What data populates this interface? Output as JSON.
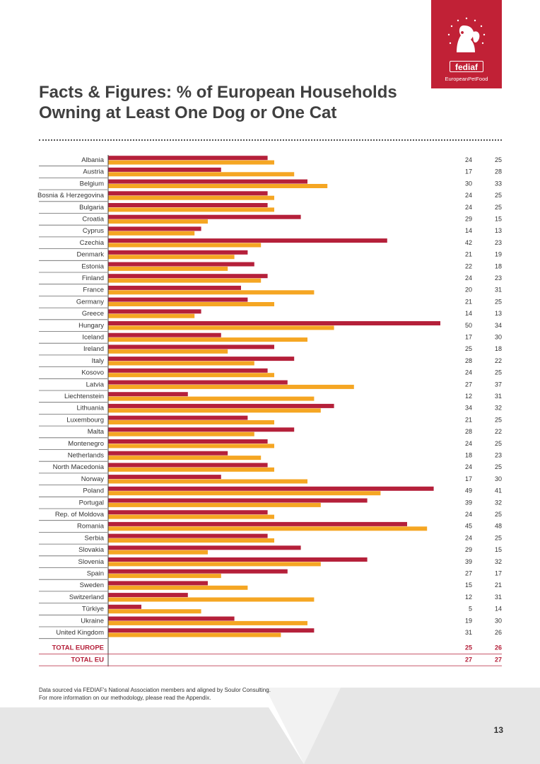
{
  "logo": {
    "name": "fediaf",
    "tagline": "EuropeanPetFood"
  },
  "title": "Facts & Figures: % of European Households Owning at Least One Dog or One Cat",
  "chart_data": {
    "type": "bar",
    "orientation": "horizontal",
    "title": "Facts & Figures: % of European Households Owning at Least One Dog or One Cat",
    "xlim": [
      0,
      55
    ],
    "grid": false,
    "legend": "none",
    "colors": {
      "series1": "#b5203a",
      "series2": "#f5a623",
      "totals_text": "#b5203a",
      "label_text": "#333333"
    },
    "categories": [
      "Albania",
      "Austria",
      "Belgium",
      "Bosnia & Herzegovina",
      "Bulgaria",
      "Croatia",
      "Cyprus",
      "Czechia",
      "Denmark",
      "Estonia",
      "Finland",
      "France",
      "Germany",
      "Greece",
      "Hungary",
      "Iceland",
      "Ireland",
      "Italy",
      "Kosovo",
      "Latvia",
      "Liechtenstein",
      "Lithuania",
      "Luxembourg",
      "Malta",
      "Montenegro",
      "Netherlands",
      "North Macedonia",
      "Norway",
      "Poland",
      "Portugal",
      "Rep. of Moldova",
      "Romania",
      "Serbia",
      "Slovakia",
      "Slovenia",
      "Spain",
      "Sweden",
      "Switzerland",
      "Türkiye",
      "Ukraine",
      "United Kingdom"
    ],
    "series": [
      {
        "values": [
          24,
          17,
          30,
          24,
          24,
          29,
          14,
          42,
          21,
          22,
          24,
          20,
          21,
          14,
          50,
          17,
          25,
          28,
          24,
          27,
          12,
          34,
          21,
          28,
          24,
          18,
          24,
          17,
          49,
          39,
          24,
          45,
          24,
          29,
          39,
          27,
          15,
          12,
          5,
          19,
          31
        ]
      },
      {
        "values": [
          25,
          28,
          33,
          25,
          25,
          15,
          13,
          23,
          19,
          18,
          23,
          31,
          25,
          13,
          34,
          30,
          18,
          22,
          25,
          37,
          31,
          32,
          25,
          22,
          25,
          23,
          25,
          30,
          41,
          32,
          25,
          48,
          25,
          15,
          32,
          17,
          21,
          31,
          14,
          30,
          26
        ]
      }
    ],
    "totals": [
      {
        "label": "TOTAL EUROPE",
        "values": [
          25,
          26
        ]
      },
      {
        "label": "TOTAL EU",
        "values": [
          27,
          27
        ]
      }
    ]
  },
  "footnote": "Data sourced via FEDIAF's National Association members and aligned by Soulor Consulting. For more information on our methodology, please read the Appendix.",
  "page_number": "13"
}
